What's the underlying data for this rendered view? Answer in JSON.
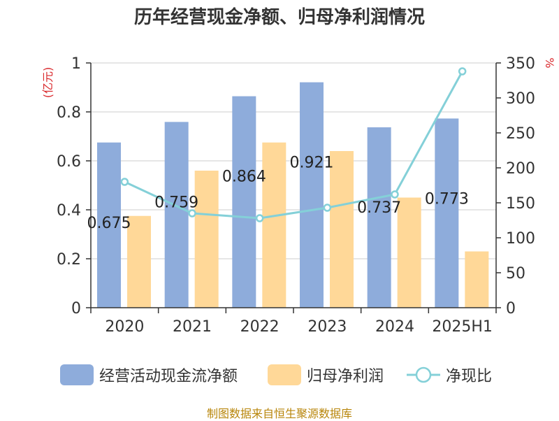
{
  "title": "历年经营现金净额、归母净利润情况",
  "source": "制图数据来自恒生聚源数据库",
  "colors": {
    "cash_flow": "#8eacdb",
    "net_profit": "#ffd898",
    "ratio": "#84d0d8",
    "grid": "#cccccc",
    "axis": "#333333",
    "unit_label": "#d9282c"
  },
  "chart_data": {
    "type": "bar",
    "title": "历年经营现金净额、归母净利润情况",
    "categories": [
      "2020",
      "2021",
      "2022",
      "2023",
      "2024",
      "2025H1"
    ],
    "ylabel": "(亿元)",
    "y2label": "%",
    "ylim": [
      0,
      1
    ],
    "yticks": [
      "0",
      "0.2",
      "0.4",
      "0.6",
      "0.8",
      "1"
    ],
    "y2lim": [
      0,
      350
    ],
    "y2ticks": [
      "0",
      "50",
      "100",
      "150",
      "200",
      "250",
      "300",
      "350"
    ],
    "grid": true,
    "legend_position": "bottom",
    "series": [
      {
        "name": "经营活动现金流净额",
        "type": "bar",
        "axis": "left",
        "values": [
          0.675,
          0.759,
          0.864,
          0.921,
          0.737,
          0.773
        ],
        "labels": [
          "0.675",
          "0.759",
          "0.864",
          "0.921",
          "0.737",
          "0.773"
        ]
      },
      {
        "name": "归母净利润",
        "type": "bar",
        "axis": "left",
        "values": [
          0.375,
          0.56,
          0.675,
          0.64,
          0.45,
          0.23
        ]
      },
      {
        "name": "净现比",
        "type": "line",
        "axis": "right",
        "values": [
          180,
          135,
          128,
          143,
          162,
          338
        ]
      }
    ]
  }
}
